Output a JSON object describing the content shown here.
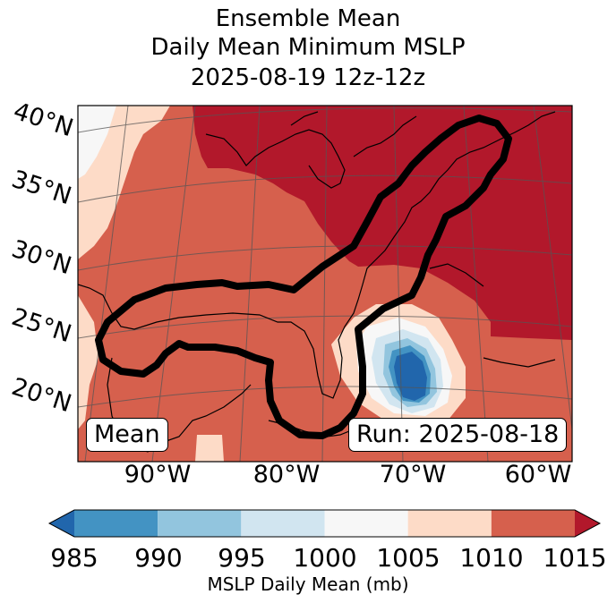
{
  "title": {
    "line1": "Ensemble Mean",
    "line2": "Daily Mean Minimum MSLP",
    "line3": "2025-08-19 12z-12z"
  },
  "map": {
    "latitude_labels": [
      "40°N",
      "35°N",
      "30°N",
      "25°N",
      "20°N"
    ],
    "longitude_labels": [
      "90°W",
      "80°W",
      "70°W",
      "60°W"
    ],
    "mean_box": "Mean",
    "run_box": "Run: 2025-08-18",
    "colors": {
      "c1015": "#b2182b",
      "c1010": "#d6604d",
      "c1005": "#fddbc7",
      "c1000": "#f7f7f7",
      "c995": "#d1e5f0",
      "c990": "#92c5de",
      "c985": "#4393c3",
      "c980": "#2166ac"
    }
  },
  "colorbar": {
    "ticks": [
      "985",
      "990",
      "995",
      "1000",
      "1005",
      "1010",
      "1015"
    ],
    "label": "MSLP Daily Mean (mb)",
    "colors": [
      "#4393c3",
      "#92c5de",
      "#d1e5f0",
      "#f7f7f7",
      "#fddbc7",
      "#d6604d"
    ],
    "under_color": "#2166ac",
    "over_color": "#b2182b"
  }
}
